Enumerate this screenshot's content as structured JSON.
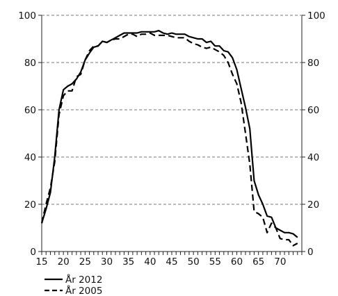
{
  "chart_data": {
    "type": "line",
    "title": "",
    "xlabel": "",
    "ylabel": "",
    "xlim": [
      15,
      75
    ],
    "ylim": [
      0,
      100
    ],
    "x_ticks": [
      15,
      20,
      25,
      30,
      35,
      40,
      45,
      50,
      55,
      60,
      65,
      70
    ],
    "y_ticks": [
      0,
      20,
      40,
      60,
      80,
      100
    ],
    "grid": "horizontal dashed",
    "legend_position": "bottom-left",
    "series": [
      {
        "name": "År 2012",
        "style": "solid",
        "x": [
          15,
          16,
          17,
          18,
          19,
          20,
          21,
          22,
          23,
          24,
          25,
          26,
          27,
          28,
          29,
          30,
          31,
          32,
          33,
          34,
          35,
          36,
          37,
          38,
          39,
          40,
          41,
          42,
          43,
          44,
          45,
          46,
          47,
          48,
          49,
          50,
          51,
          52,
          53,
          54,
          55,
          56,
          57,
          58,
          59,
          60,
          61,
          62,
          63,
          64,
          65,
          66,
          67,
          68,
          69,
          70,
          71,
          72,
          73,
          74
        ],
        "values": [
          12,
          18,
          25,
          40,
          60,
          68.5,
          70,
          71,
          73,
          76,
          81,
          84,
          86.5,
          87,
          89,
          88.5,
          89.5,
          90.5,
          91.5,
          92.5,
          92.5,
          92.5,
          92.5,
          93,
          93,
          93,
          93,
          93.5,
          92.5,
          92,
          92.5,
          92,
          92,
          92,
          91,
          90.5,
          90,
          90,
          88.5,
          89,
          87,
          87,
          85,
          84.5,
          82,
          77,
          69,
          61,
          52,
          30,
          24,
          20,
          15,
          14.5,
          10,
          9,
          8,
          8,
          7.5,
          6
        ]
      },
      {
        "name": "År 2005",
        "style": "dashed",
        "x": [
          15,
          16,
          17,
          18,
          19,
          20,
          21,
          22,
          23,
          24,
          25,
          26,
          27,
          28,
          29,
          30,
          31,
          32,
          33,
          34,
          35,
          36,
          37,
          38,
          39,
          40,
          41,
          42,
          43,
          44,
          45,
          46,
          47,
          48,
          49,
          50,
          51,
          52,
          53,
          54,
          55,
          56,
          57,
          58,
          59,
          60,
          61,
          62,
          63,
          64,
          65,
          66,
          67,
          68,
          69,
          70,
          71,
          72,
          73,
          74
        ],
        "values": [
          12,
          20,
          27,
          38,
          58,
          66,
          68,
          68,
          74,
          75,
          81,
          85,
          87,
          87,
          89,
          88.5,
          89.5,
          90,
          90,
          91,
          92,
          92,
          91,
          92,
          92,
          92.5,
          91.5,
          91.5,
          91.5,
          91.5,
          91,
          90.5,
          90.5,
          90.5,
          89,
          88,
          87.5,
          86.5,
          86,
          86.5,
          85.5,
          84.5,
          83,
          80,
          75,
          71,
          63,
          50,
          37,
          17,
          16,
          14.5,
          8,
          12,
          10,
          5.5,
          5,
          5,
          2.5,
          3.5
        ]
      }
    ]
  }
}
